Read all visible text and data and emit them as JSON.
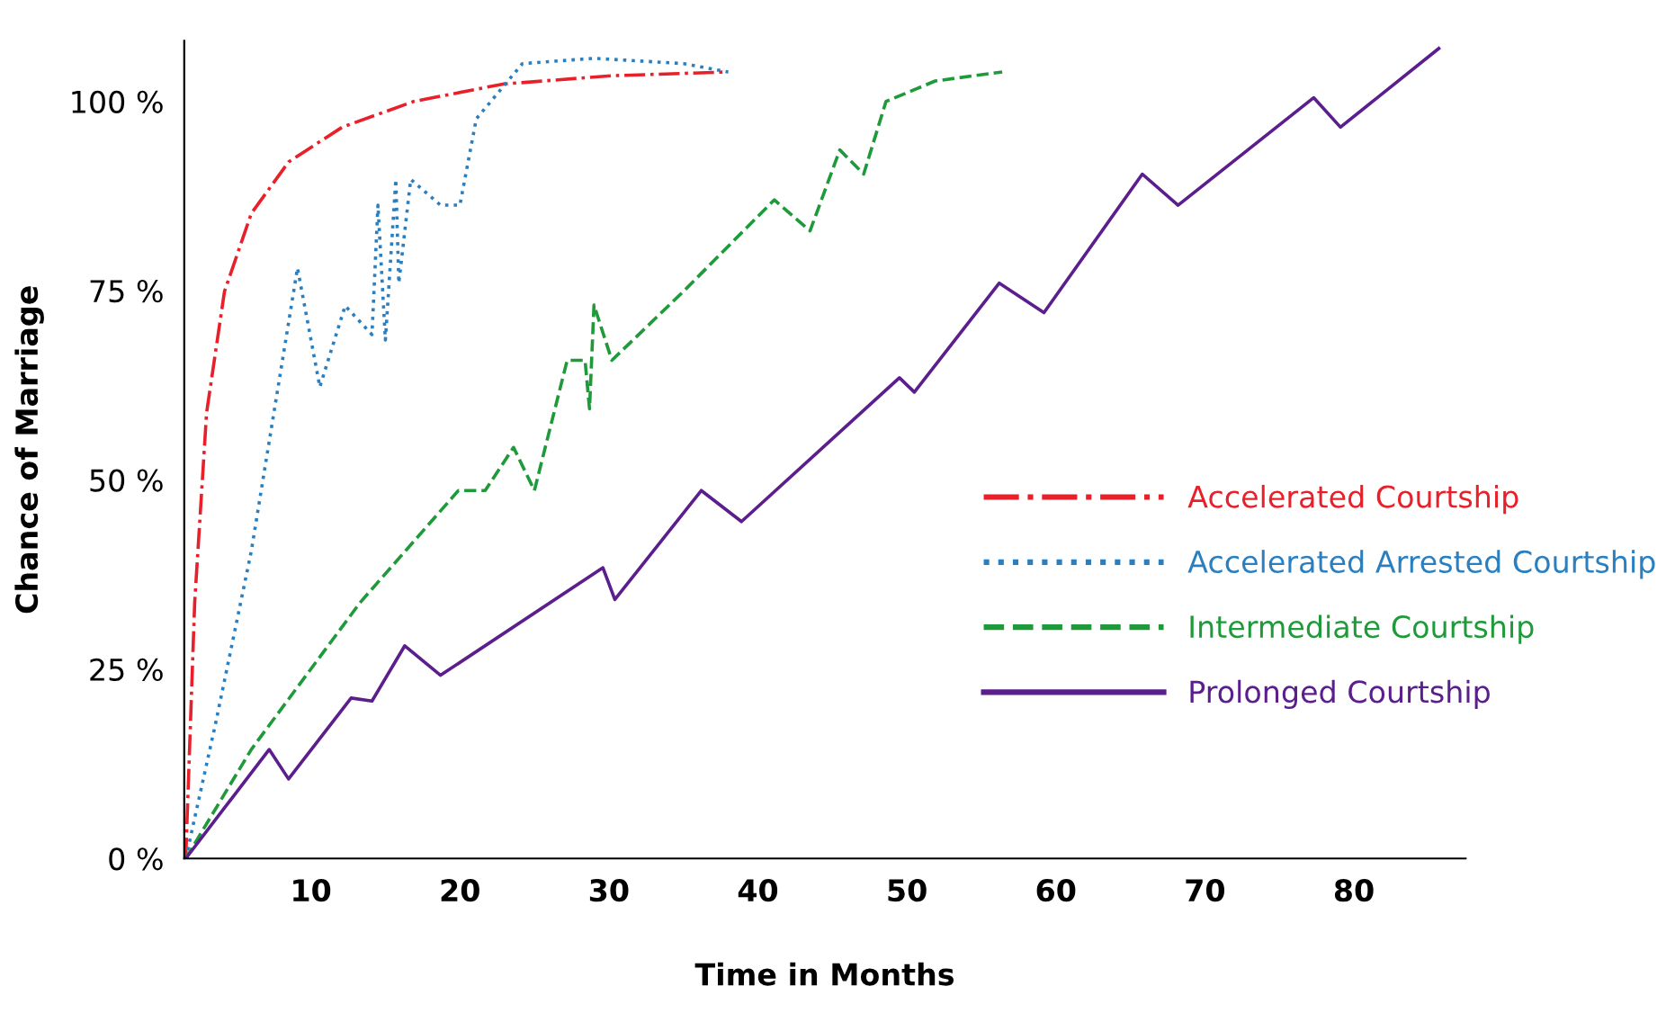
{
  "chart_data": {
    "type": "line",
    "xlabel": "Time in Months",
    "ylabel": "Chance of Marriage",
    "xlim": [
      1.5,
      87.5
    ],
    "ylim": [
      0,
      108
    ],
    "xticks": [
      10,
      20,
      30,
      40,
      50,
      60,
      70,
      80
    ],
    "yticks": [
      {
        "value": 0,
        "label": "0 %"
      },
      {
        "value": 25,
        "label": "25 %"
      },
      {
        "value": 50,
        "label": "50 %"
      },
      {
        "value": 75,
        "label": "75 %"
      },
      {
        "value": 100,
        "label": "100 %"
      }
    ],
    "grid": false,
    "legend": "right",
    "marker": "none",
    "series": [
      {
        "name": "Accelerated Courtship",
        "color": "#e8202a",
        "line_style": "dashdot",
        "x": [
          1.6,
          2.2,
          3.0,
          4.2,
          6.0,
          8.5,
          12.1,
          16.9,
          22.9,
          30.2,
          38.0
        ],
        "values": [
          0,
          33.8,
          58.9,
          74.9,
          85.2,
          92,
          96.6,
          100,
          102.3,
          103.4,
          103.9
        ]
      },
      {
        "name": "Accelerated Arrested Courtship",
        "color": "#2a7fc0",
        "line_style": "dotted",
        "x": [
          1.6,
          3.6,
          6.0,
          7.9,
          9.1,
          10.6,
          12.3,
          14.1,
          14.5,
          15.0,
          15.7,
          15.9,
          16.7,
          18.7,
          20.0,
          21.1,
          24.2,
          29.0,
          35.0,
          38.0
        ],
        "values": [
          0,
          17.8,
          40.6,
          63.5,
          78,
          62.3,
          73,
          69.2,
          86.3,
          68.5,
          89.7,
          76,
          89.7,
          86.3,
          86.3,
          97.7,
          105,
          105.7,
          105,
          103.9
        ]
      },
      {
        "name": "Intermediate Courtship",
        "color": "#1f9a3a",
        "line_style": "dashed",
        "x": [
          1.6,
          6.0,
          13.3,
          19.9,
          21.7,
          23.6,
          25.0,
          27.2,
          28.4,
          28.7,
          29.0,
          30.2,
          35.0,
          41.1,
          43.5,
          45.5,
          47.1,
          48.6,
          51.9,
          56.4
        ],
        "values": [
          0,
          14.4,
          33.8,
          48.6,
          48.6,
          54.3,
          48.6,
          65.8,
          65.8,
          59.4,
          73.1,
          65.8,
          74.9,
          87,
          82.9,
          93.6,
          90.4,
          100,
          102.7,
          103.9
        ]
      },
      {
        "name": "Prolonged Courtship",
        "color": "#5b1e8c",
        "line_style": "solid",
        "x": [
          1.6,
          7.2,
          8.5,
          12.7,
          14.1,
          16.3,
          18.7,
          29.6,
          30.4,
          36.2,
          38.9,
          49.5,
          50.5,
          56.2,
          59.2,
          65.8,
          68.2,
          77.3,
          79.1,
          85.7
        ],
        "values": [
          0,
          14.4,
          10.5,
          21.2,
          20.8,
          28.1,
          24.2,
          38.4,
          34.2,
          48.6,
          44.5,
          63.5,
          61.6,
          76,
          72.1,
          90.4,
          86.3,
          100.5,
          96.6,
          107
        ]
      }
    ]
  }
}
